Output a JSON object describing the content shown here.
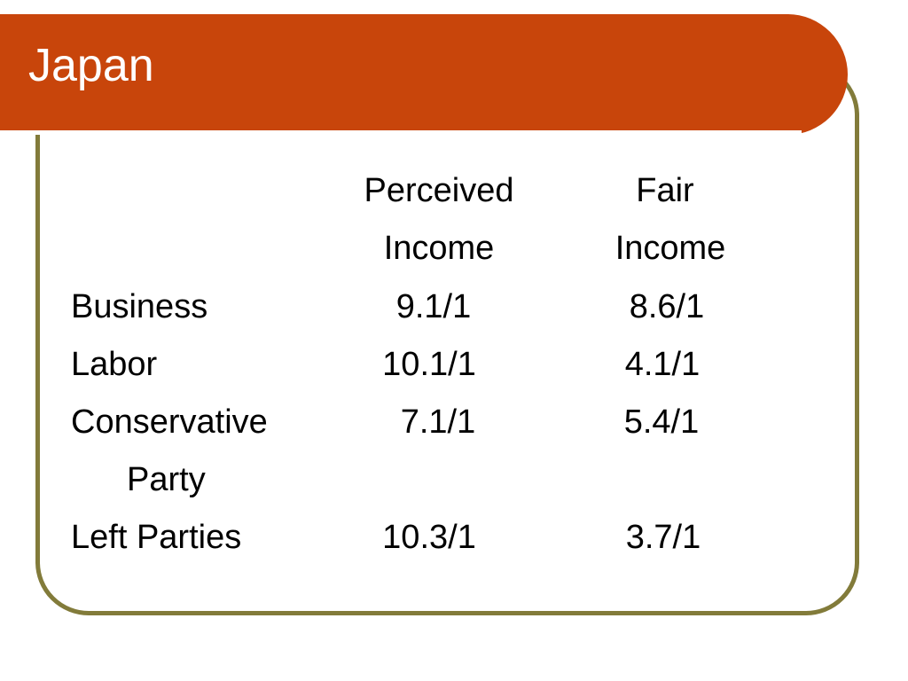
{
  "slide": {
    "title": "Japan"
  },
  "table": {
    "header_row_1": [
      "Perceived",
      "Fair"
    ],
    "header_row_2": [
      "Income",
      "Income"
    ],
    "rows": [
      {
        "label": "Business",
        "perceived": "9.1/1",
        "fair": "8.6/1"
      },
      {
        "label": "Labor",
        "perceived": "10.1/1",
        "fair": "4.1/1"
      },
      {
        "label": "Conservative",
        "label_cont": "Party",
        "perceived": "7.1/1",
        "fair": "5.4/1"
      },
      {
        "label": "Left Parties",
        "perceived": "10.3/1",
        "fair": "3.7/1"
      }
    ]
  },
  "colors": {
    "title_bar": "#c8450b",
    "frame": "#827b3a",
    "title_text": "#ffffff",
    "body_text": "#000000"
  }
}
